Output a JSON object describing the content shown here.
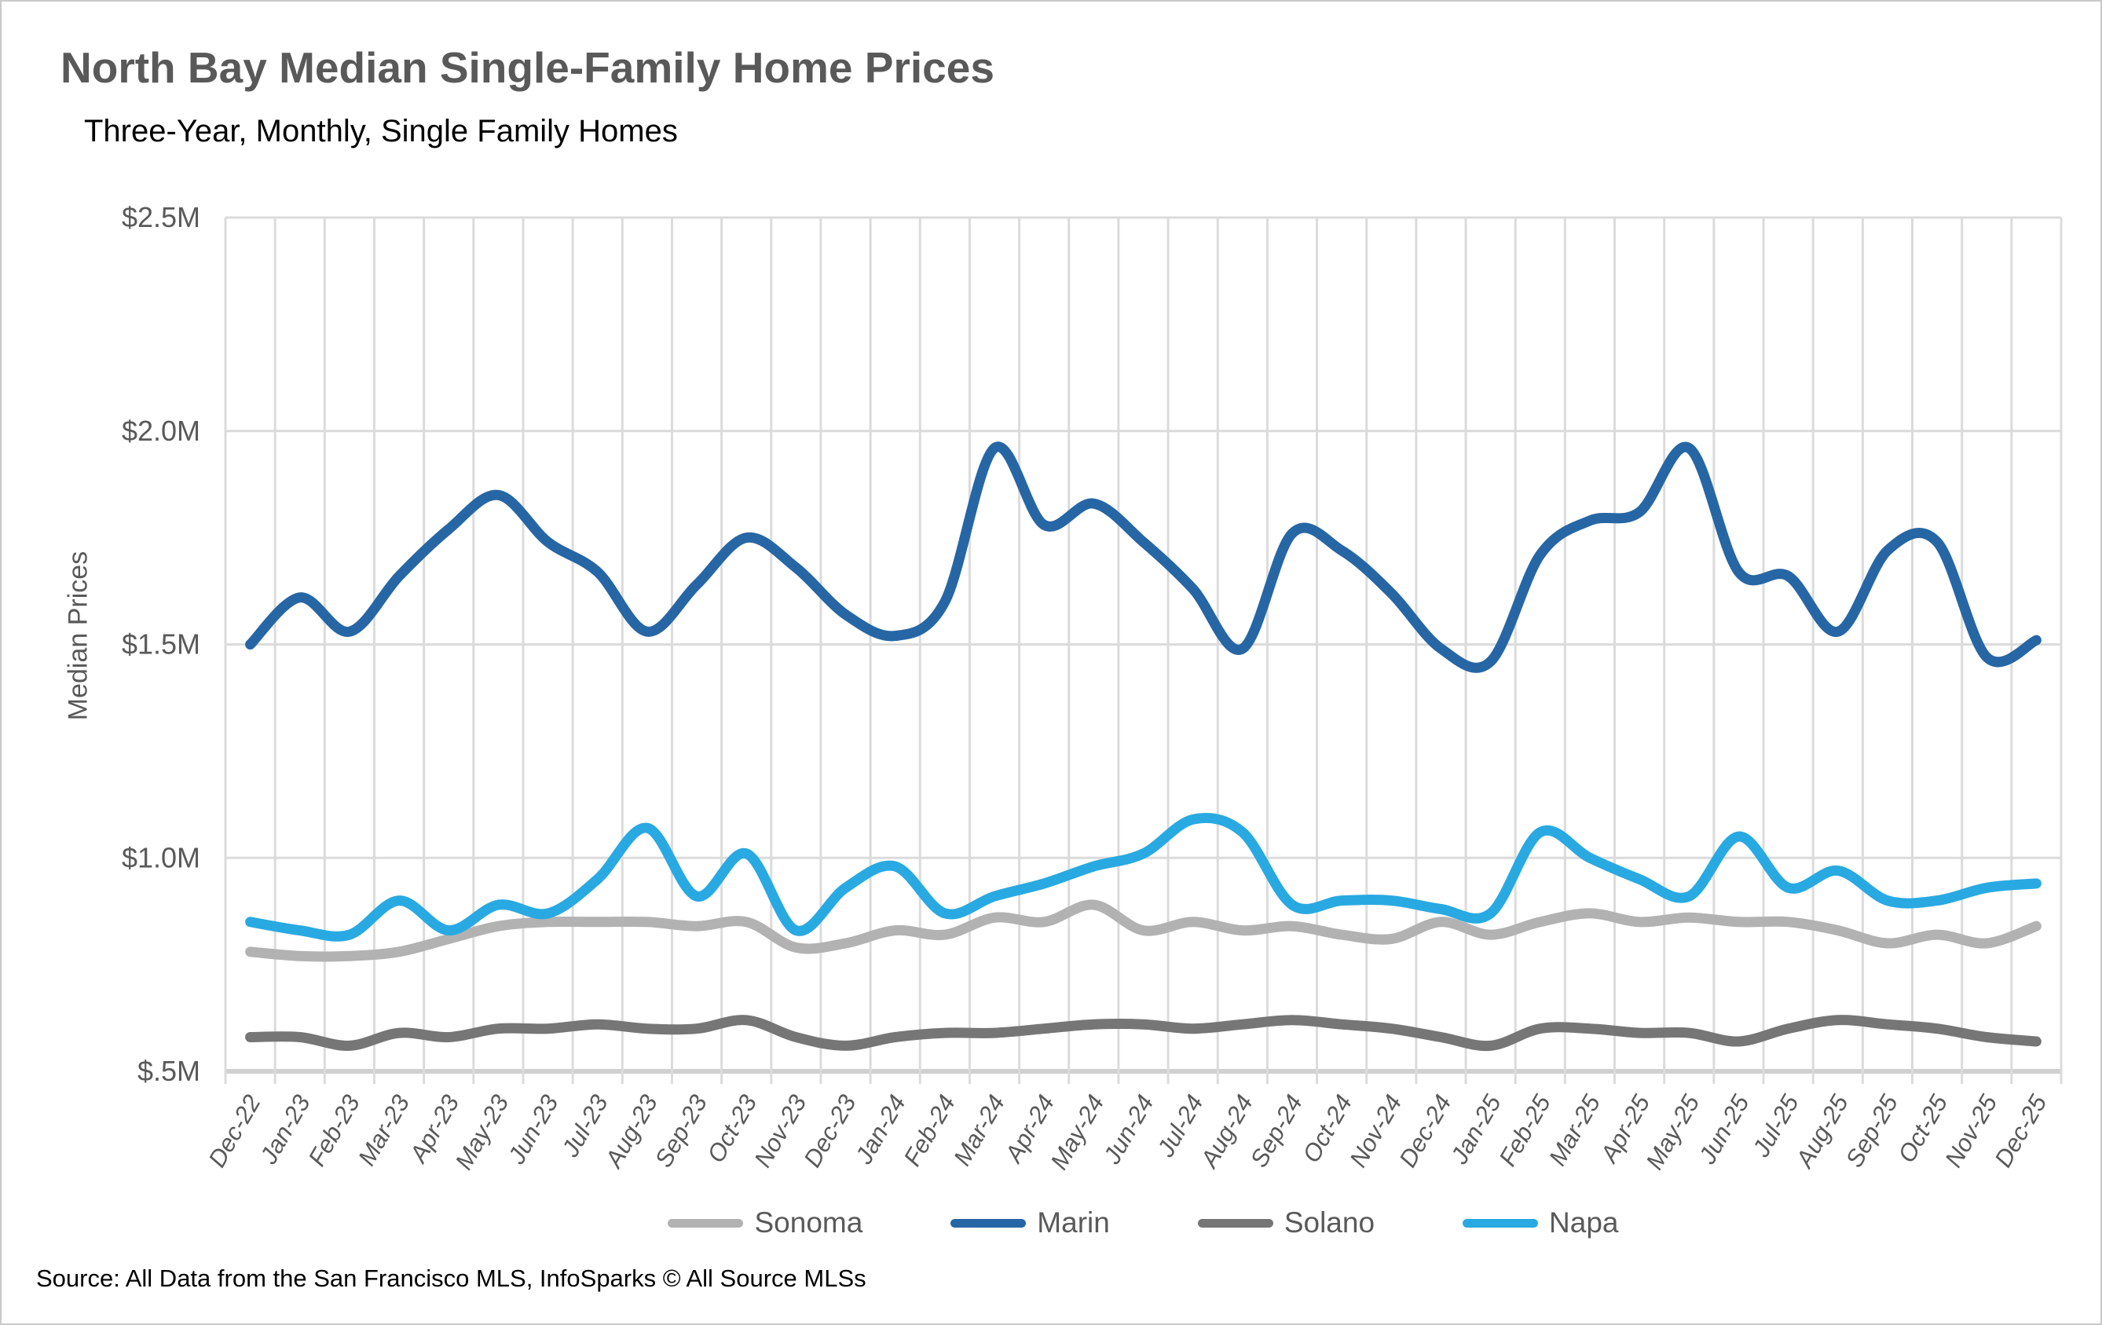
{
  "page": {
    "title": "North Bay Median Single-Family Home Prices",
    "subtitle": "Three-Year, Monthly, Single Family Homes",
    "source": "Source: All Data from the San Francisco MLS, InfoSparks © All Source MLSs"
  },
  "chart_data": {
    "type": "line",
    "title": "North Bay Median Single-Family Home Prices",
    "subtitle": "Three-Year, Monthly, Single Family Homes",
    "xlabel": "",
    "ylabel": "Median Prices",
    "unit": "USD millions",
    "ylim": [
      0.5,
      2.5
    ],
    "grid": true,
    "smooth_lines": true,
    "legend_position": "bottom",
    "y_ticks": [
      "$2.5M",
      "$2.0M",
      "$1.5M",
      "$1.0M",
      "$.5M"
    ],
    "y_tick_values": [
      2.5,
      2.0,
      1.5,
      1.0,
      0.5
    ],
    "categories": [
      "Dec-22",
      "Jan-23",
      "Feb-23",
      "Mar-23",
      "Apr-23",
      "May-23",
      "Jun-23",
      "Jul-23",
      "Aug-23",
      "Sep-23",
      "Oct-23",
      "Nov-23",
      "Dec-23",
      "Jan-24",
      "Feb-24",
      "Mar-24",
      "Apr-24",
      "May-24",
      "Jun-24",
      "Jul-24",
      "Aug-24",
      "Sep-24",
      "Oct-24",
      "Nov-24",
      "Dec-24",
      "Jan-25",
      "Feb-25",
      "Mar-25",
      "Apr-25",
      "May-25",
      "Jun-25",
      "Jul-25",
      "Aug-25",
      "Sep-25",
      "Oct-25",
      "Nov-25",
      "Dec-25"
    ],
    "series": [
      {
        "name": "Sonoma",
        "color": "#B2B2B2",
        "values": [
          0.78,
          0.77,
          0.77,
          0.78,
          0.81,
          0.84,
          0.85,
          0.85,
          0.85,
          0.84,
          0.85,
          0.79,
          0.8,
          0.83,
          0.82,
          0.86,
          0.85,
          0.89,
          0.83,
          0.85,
          0.83,
          0.84,
          0.82,
          0.81,
          0.85,
          0.82,
          0.85,
          0.87,
          0.85,
          0.86,
          0.85,
          0.85,
          0.83,
          0.8,
          0.82,
          0.8,
          0.84
        ]
      },
      {
        "name": "Marin",
        "color": "#2766A4",
        "values": [
          1.5,
          1.61,
          1.53,
          1.66,
          1.77,
          1.85,
          1.74,
          1.67,
          1.53,
          1.64,
          1.75,
          1.68,
          1.57,
          1.52,
          1.6,
          1.96,
          1.78,
          1.83,
          1.74,
          1.63,
          1.49,
          1.76,
          1.72,
          1.62,
          1.49,
          1.46,
          1.71,
          1.79,
          1.81,
          1.96,
          1.67,
          1.66,
          1.53,
          1.72,
          1.74,
          1.47,
          1.51
        ]
      },
      {
        "name": "Solano",
        "color": "#767676",
        "values": [
          0.58,
          0.58,
          0.56,
          0.59,
          0.58,
          0.6,
          0.6,
          0.61,
          0.6,
          0.6,
          0.62,
          0.58,
          0.56,
          0.58,
          0.59,
          0.59,
          0.6,
          0.61,
          0.61,
          0.6,
          0.61,
          0.62,
          0.61,
          0.6,
          0.58,
          0.56,
          0.6,
          0.6,
          0.59,
          0.59,
          0.57,
          0.6,
          0.62,
          0.61,
          0.6,
          0.58,
          0.57
        ]
      },
      {
        "name": "Napa",
        "color": "#29A9E1",
        "values": [
          0.85,
          0.83,
          0.82,
          0.9,
          0.83,
          0.89,
          0.87,
          0.95,
          1.07,
          0.91,
          1.01,
          0.83,
          0.93,
          0.98,
          0.87,
          0.91,
          0.94,
          0.98,
          1.01,
          1.09,
          1.06,
          0.89,
          0.9,
          0.9,
          0.88,
          0.87,
          1.06,
          1.0,
          0.95,
          0.91,
          1.05,
          0.93,
          0.97,
          0.9,
          0.9,
          0.93,
          0.94
        ]
      }
    ],
    "source": "Source: All Data from the San Francisco MLS, InfoSparks © All Source MLSs"
  },
  "style": {
    "grid_color": "#DBDBDB",
    "baseline_color": "#D0D0D0",
    "tick_text_color": "#595959",
    "title_color": "#595959",
    "line_width": 13
  }
}
